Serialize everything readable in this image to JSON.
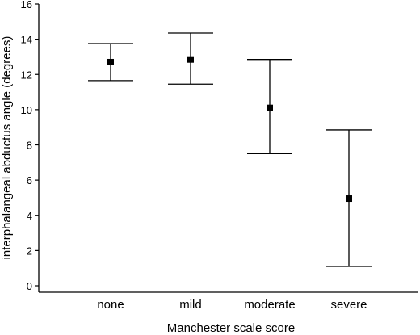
{
  "chart_data": {
    "type": "scatter",
    "title": "",
    "xlabel": "Manchester scale score",
    "ylabel": "interphalangeal abductus angle (degrees)",
    "categories": [
      "none",
      "mild",
      "moderate",
      "severe"
    ],
    "series": [
      {
        "values": [
          12.7,
          12.85,
          10.1,
          4.95
        ],
        "lower": [
          11.65,
          11.45,
          7.5,
          1.1
        ],
        "upper": [
          13.75,
          14.35,
          12.85,
          8.85
        ]
      }
    ],
    "ylim": [
      0,
      16
    ],
    "yticks": [
      "0",
      "2",
      "4",
      "6",
      "8",
      "10",
      "12",
      "14",
      "16"
    ],
    "grid": false,
    "marker_color": "#000000"
  }
}
